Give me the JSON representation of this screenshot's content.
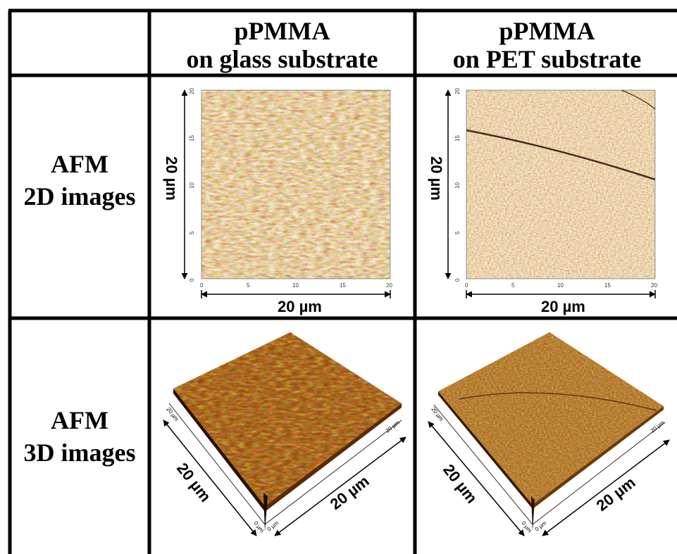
{
  "columns": [
    {
      "title": "pPMMA",
      "subtitle": "on glass substrate"
    },
    {
      "title": "pPMMA",
      "subtitle": "on PET substrate"
    }
  ],
  "rows": [
    {
      "line1": "AFM",
      "line2": "2D images"
    },
    {
      "line1": "AFM",
      "line2": "3D images"
    }
  ],
  "afm_2d": {
    "ticks": [
      "0",
      "5",
      "10",
      "15",
      "20"
    ],
    "x_dimension": "20 µm",
    "y_dimension": "20 µm"
  },
  "afm_3d": {
    "axis_dimension": "20 µm",
    "tick_max": "20 µm",
    "tick_zero": "0 µm"
  },
  "colors": {
    "glass_dark": "#3a1502",
    "glass_mid": "#a54c06",
    "glass_light": "#f3c25a",
    "pet_dark": "#4a2108",
    "pet_mid": "#a8630f",
    "pet_light": "#e6b05a"
  }
}
